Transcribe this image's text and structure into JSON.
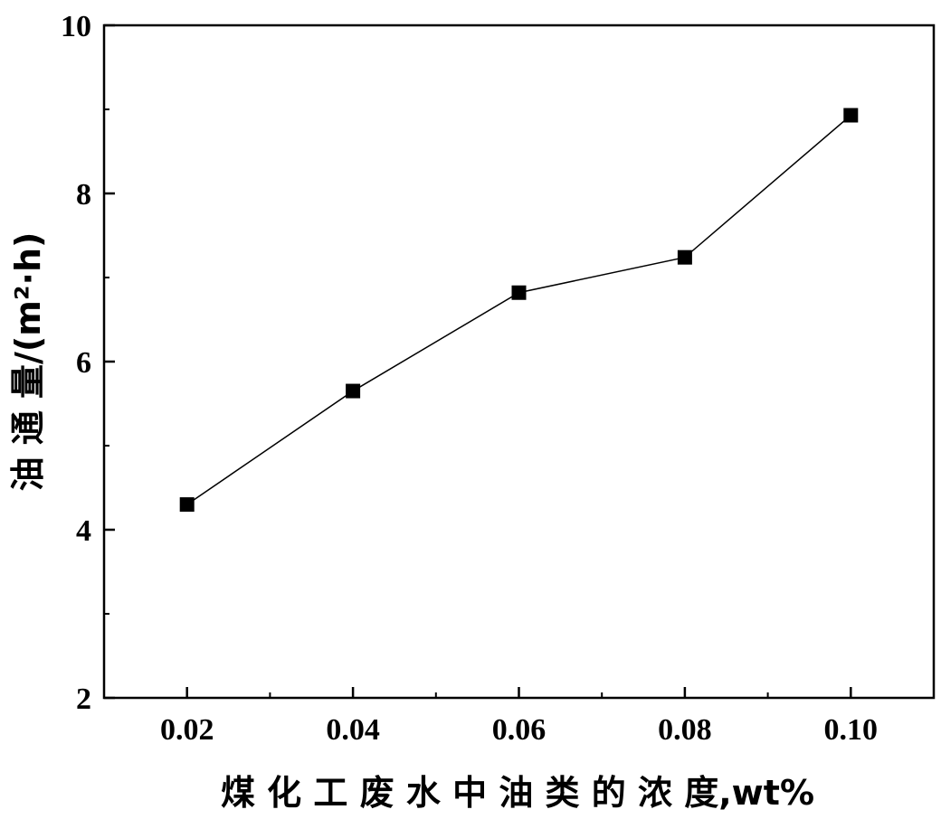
{
  "chart_data": {
    "type": "line",
    "title": "",
    "xlabel": "煤 化 工 废 水 中 油 类 的 浓 度,wt%",
    "ylabel": "油 通 量/(m²·h)",
    "xlim": [
      0.01,
      0.11
    ],
    "ylim": [
      2,
      10
    ],
    "x_ticks": [
      "0.02",
      "0.04",
      "0.06",
      "0.08",
      "0.10"
    ],
    "y_ticks": [
      "2",
      "4",
      "6",
      "8",
      "10"
    ],
    "x_minor_ticks": [
      0.03,
      0.05,
      0.07,
      0.09
    ],
    "y_minor_ticks": [
      3,
      5,
      7,
      9
    ],
    "grid": false,
    "legend": "none",
    "series": [
      {
        "x": [
          0.02,
          0.04,
          0.06,
          0.08,
          0.1
        ],
        "y": [
          4.3,
          5.65,
          6.82,
          7.24,
          8.93
        ],
        "marker": "square",
        "color": "#000000"
      }
    ]
  }
}
